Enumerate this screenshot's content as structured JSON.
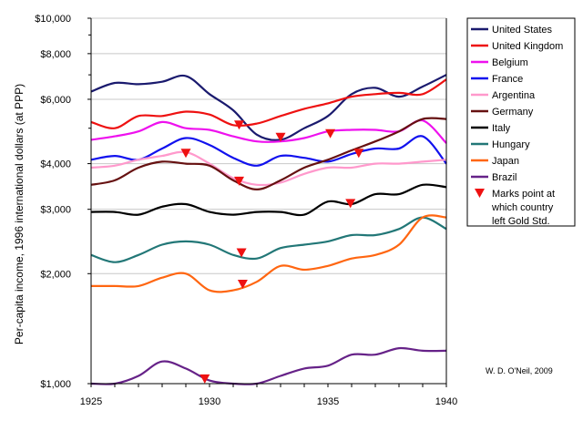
{
  "chart_data": {
    "type": "line",
    "title": "",
    "ylabel": "Per-capita income, 1996 international dollars (at PPP)",
    "xlabel": "",
    "yscale": "log",
    "ylim": [
      1000,
      10000
    ],
    "xlim": [
      1925,
      1940
    ],
    "x_ticks": [
      1925,
      1930,
      1935,
      1940
    ],
    "x_tick_labels": [
      "1925",
      "1930",
      "1935",
      "1940"
    ],
    "y_ticks": [
      1000,
      2000,
      3000,
      4000,
      6000,
      8000,
      10000
    ],
    "y_tick_labels": [
      "$1,000",
      "$2,000",
      "$3,000",
      "$4,000",
      "$6,000",
      "$8,000",
      "$10,000"
    ],
    "x": [
      1925,
      1926,
      1927,
      1928,
      1929,
      1930,
      1931,
      1932,
      1933,
      1934,
      1935,
      1936,
      1937,
      1938,
      1939,
      1940
    ],
    "series": [
      {
        "name": "United States",
        "color": "#1a1a6e",
        "values": [
          6300,
          6650,
          6600,
          6700,
          6950,
          6200,
          5600,
          4800,
          4650,
          5000,
          5400,
          6200,
          6450,
          6100,
          6500,
          7000
        ]
      },
      {
        "name": "United Kingdom",
        "color": "#ee1111",
        "values": [
          5200,
          5000,
          5400,
          5400,
          5550,
          5450,
          5100,
          5150,
          5400,
          5650,
          5850,
          6100,
          6200,
          6250,
          6200,
          6800
        ]
      },
      {
        "name": "Belgium",
        "color": "#ee11ee",
        "values": [
          4650,
          4750,
          4900,
          5200,
          5000,
          4950,
          4750,
          4600,
          4600,
          4700,
          4900,
          4950,
          4950,
          4900,
          5250,
          4550
        ]
      },
      {
        "name": "France",
        "color": "#1111ee",
        "values": [
          4100,
          4200,
          4100,
          4400,
          4700,
          4500,
          4150,
          3950,
          4200,
          4150,
          4050,
          4250,
          4400,
          4400,
          4750,
          4000
        ]
      },
      {
        "name": "Argentina",
        "color": "#ff99cc",
        "values": [
          3900,
          3950,
          4100,
          4200,
          4300,
          4000,
          3650,
          3500,
          3550,
          3750,
          3900,
          3900,
          4000,
          4000,
          4050,
          4100
        ]
      },
      {
        "name": "Germany",
        "color": "#661111",
        "values": [
          3500,
          3600,
          3900,
          4050,
          4000,
          3950,
          3600,
          3400,
          3600,
          3900,
          4100,
          4350,
          4600,
          4900,
          5300,
          5300
        ]
      },
      {
        "name": "Italy",
        "color": "#000000",
        "values": [
          2950,
          2950,
          2900,
          3050,
          3100,
          2950,
          2900,
          2950,
          2950,
          2900,
          3150,
          3100,
          3300,
          3300,
          3500,
          3450
        ]
      },
      {
        "name": "Hungary",
        "color": "#227777",
        "values": [
          2250,
          2150,
          2250,
          2400,
          2450,
          2400,
          2250,
          2200,
          2350,
          2400,
          2450,
          2550,
          2550,
          2650,
          2850,
          2650
        ]
      },
      {
        "name": "Japan",
        "color": "#ff6611",
        "values": [
          1850,
          1850,
          1850,
          1950,
          2000,
          1800,
          1800,
          1900,
          2100,
          2050,
          2100,
          2200,
          2250,
          2400,
          2850,
          2850
        ]
      },
      {
        "name": "Brazil",
        "color": "#662288",
        "values": [
          1000,
          1000,
          1050,
          1150,
          1100,
          1020,
          1000,
          1000,
          1050,
          1100,
          1120,
          1200,
          1200,
          1250,
          1230,
          1230
        ]
      }
    ],
    "gold_standard_exit": [
      {
        "country": "Argentina",
        "x": 1929.0,
        "y": 4270
      },
      {
        "country": "Brazil",
        "x": 1929.8,
        "y": 1030
      },
      {
        "country": "United Kingdom",
        "x": 1931.25,
        "y": 5100
      },
      {
        "country": "Germany",
        "x": 1931.25,
        "y": 3580
      },
      {
        "country": "Hungary",
        "x": 1931.35,
        "y": 2280
      },
      {
        "country": "Japan",
        "x": 1931.4,
        "y": 1870
      },
      {
        "country": "United States",
        "x": 1933.0,
        "y": 4720
      },
      {
        "country": "Belgium",
        "x": 1935.1,
        "y": 4830
      },
      {
        "country": "Italy",
        "x": 1935.95,
        "y": 3110
      },
      {
        "country": "France",
        "x": 1936.3,
        "y": 4270
      }
    ],
    "legend": {
      "placement": "right",
      "marker_label_lines": [
        "Marks point at",
        "which country",
        "left Gold Std."
      ]
    },
    "annotation": "W. D. O'Neil, 2009"
  }
}
